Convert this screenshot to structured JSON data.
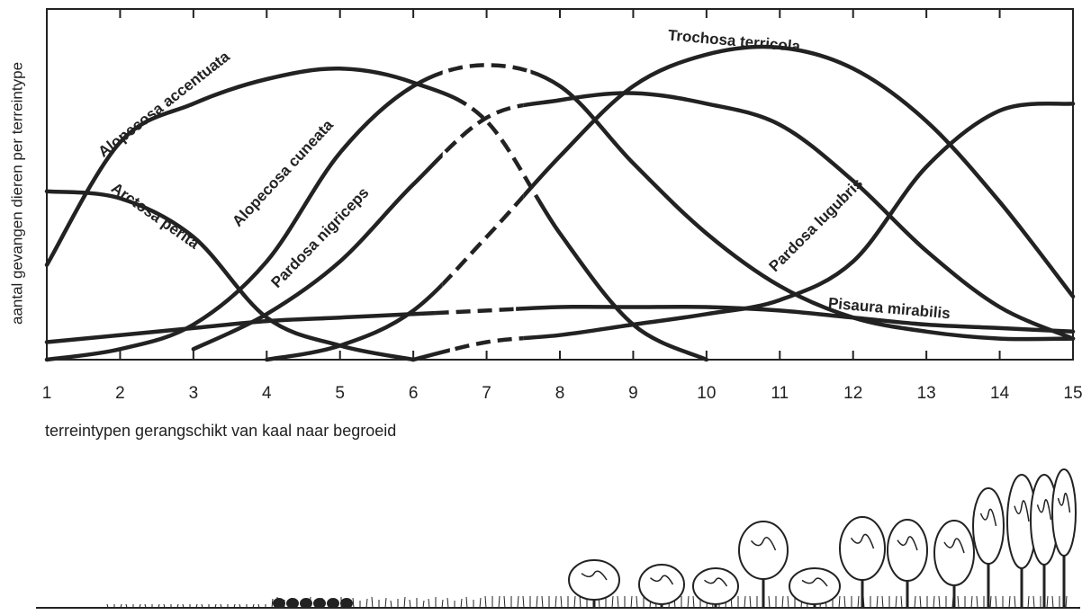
{
  "chart_data": {
    "type": "line",
    "y_label": "aantal gevangen dieren per terreintype",
    "x_label": "terreintypen gerangschikt van kaal naar begroeid",
    "x": [
      1,
      2,
      3,
      4,
      5,
      6,
      7,
      8,
      9,
      10,
      11,
      12,
      13,
      14,
      15
    ],
    "xlim": [
      1,
      15
    ],
    "xticks": [
      1,
      2,
      3,
      4,
      5,
      6,
      7,
      8,
      9,
      10,
      11,
      12,
      13,
      14,
      15
    ],
    "ylim": [
      0,
      100
    ],
    "color": "#222222",
    "series": [
      {
        "name": "Arctosa perita",
        "values": [
          48,
          46,
          35,
          12,
          4,
          0,
          null,
          null,
          null,
          null,
          null,
          null,
          null,
          null,
          null
        ]
      },
      {
        "name": "Alopecosa accentuata",
        "values": [
          27,
          62,
          73,
          80,
          83,
          79,
          68,
          36,
          10,
          0,
          null,
          null,
          null,
          null,
          null
        ],
        "dashed": [
          6.6,
          7.7
        ]
      },
      {
        "name": "Alopecosa cuneata",
        "values": [
          0,
          3,
          10,
          28,
          59,
          78,
          84,
          78,
          56,
          36,
          21,
          12,
          8,
          6,
          6
        ],
        "dashed": [
          6.4,
          7.6
        ]
      },
      {
        "name": "Pardosa nigriceps",
        "values": [
          null,
          null,
          3,
          13,
          28,
          50,
          69,
          74,
          76,
          73,
          67,
          51,
          31,
          15,
          6
        ],
        "dashed": [
          6.4,
          7.5
        ]
      },
      {
        "name": "Trochosa terricola",
        "values": [
          null,
          null,
          null,
          0,
          4,
          14,
          35,
          58,
          78,
          87,
          89,
          83,
          68,
          45,
          18
        ],
        "dashed": [
          6.4,
          7.5
        ]
      },
      {
        "name": "Pisaura mirabilis",
        "values": [
          5,
          7,
          9,
          11,
          12,
          13,
          14,
          15,
          15,
          15,
          14,
          12,
          10,
          9,
          8
        ],
        "dashed": [
          6.3,
          7.4
        ]
      },
      {
        "name": "Pardosa lugubris",
        "values": [
          null,
          null,
          null,
          null,
          null,
          0,
          5,
          7,
          10,
          13,
          17,
          28,
          55,
          71,
          73
        ],
        "dashed": [
          6.5,
          7.5
        ]
      }
    ]
  }
}
